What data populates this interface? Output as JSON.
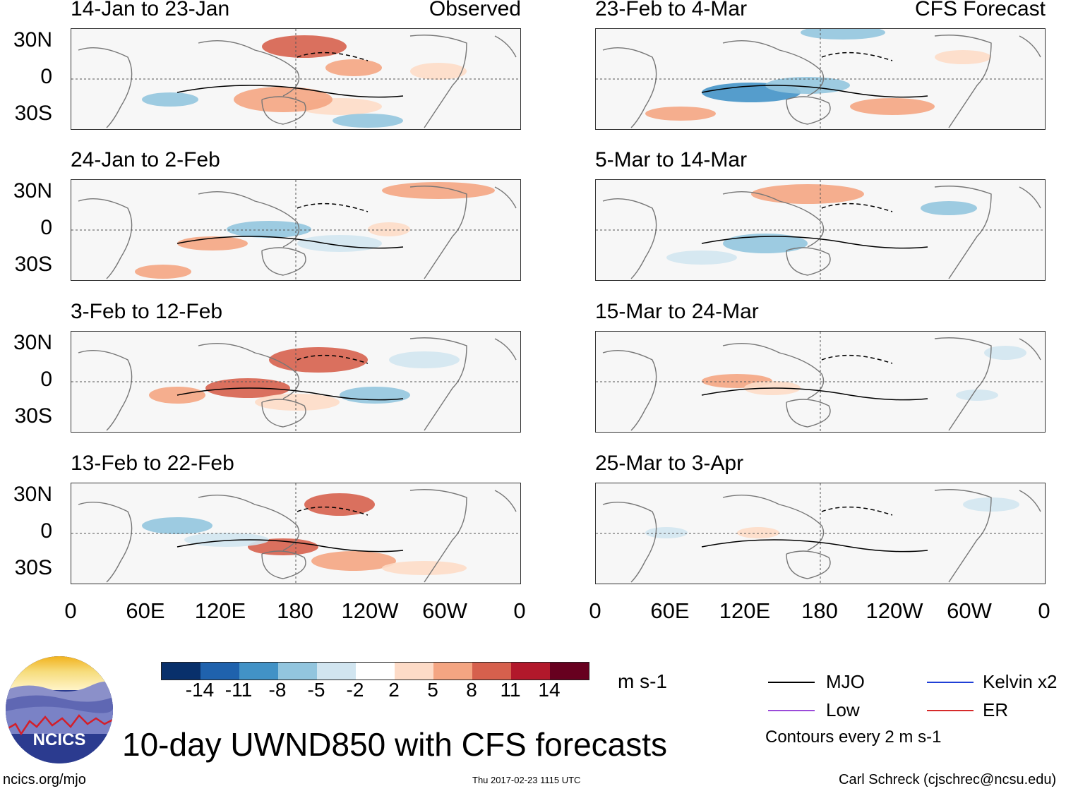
{
  "panels": {
    "observed": [
      {
        "title": "14-Jan to 23-Jan",
        "tag": "Observed"
      },
      {
        "title": "24-Jan to 2-Feb",
        "tag": ""
      },
      {
        "title": "3-Feb to 12-Feb",
        "tag": ""
      },
      {
        "title": "13-Feb to 22-Feb",
        "tag": ""
      }
    ],
    "forecast": [
      {
        "title": "23-Feb to 4-Mar",
        "tag": "CFS Forecast"
      },
      {
        "title": "5-Mar to 14-Mar",
        "tag": ""
      },
      {
        "title": "15-Mar to 24-Mar",
        "tag": ""
      },
      {
        "title": "25-Mar to 3-Apr",
        "tag": ""
      }
    ]
  },
  "axes": {
    "lat_labels": [
      "30N",
      "0",
      "30S"
    ],
    "lon_labels": [
      "0",
      "60E",
      "120E",
      "180",
      "120W",
      "60W",
      "0"
    ]
  },
  "colorbar": {
    "colors": [
      "#08306b",
      "#1f62ad",
      "#4292c6",
      "#92c5de",
      "#d1e5f0",
      "#ffffff",
      "#fddbc7",
      "#f4a582",
      "#d6604d",
      "#b2182b",
      "#67001f"
    ],
    "labels": [
      "-14",
      "-11",
      "-8",
      "-5",
      "-2",
      "2",
      "5",
      "8",
      "11",
      "14"
    ],
    "units": "m s-1"
  },
  "legend": {
    "items": [
      {
        "label": "MJO",
        "color": "#000000"
      },
      {
        "label": "Kelvin x2",
        "color": "#1f3fd6"
      },
      {
        "label": "Low",
        "color": "#9b4bd9"
      },
      {
        "label": "ER",
        "color": "#d62a2a"
      }
    ],
    "contour_note": "Contours every 2 m s-1"
  },
  "logo": {
    "text": "NCICS"
  },
  "main_title": "10-day UWND850 with CFS forecasts",
  "footer": {
    "url": "ncics.org/mjo",
    "timestamp": "Thu 2017-02-23 1115 UTC",
    "author": "Carl Schreck (cjschrec@ncsu.edu)"
  }
}
